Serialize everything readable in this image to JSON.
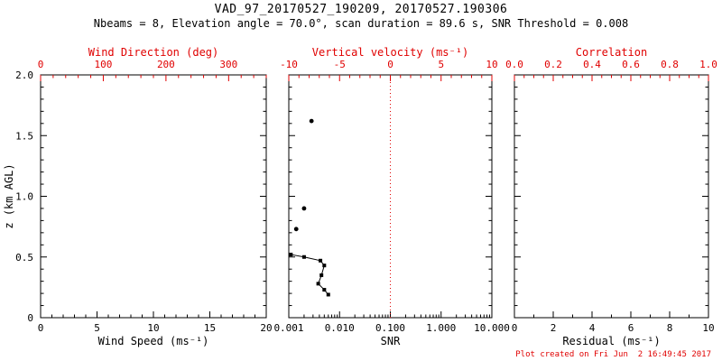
{
  "title": "VAD_97_20170527_190209, 20170527.190306",
  "subtitle": "Nbeams = 8, Elevation angle = 70.0°, scan duration = 89.6 s, SNR Threshold = 0.008",
  "footer": "Plot created on Fri Jun  2 16:49:45 2017",
  "colors": {
    "axis": "#000000",
    "secondary": "#e00000",
    "background": "#ffffff"
  },
  "y_axis": {
    "label": "z (km AGL)",
    "lim": [
      0,
      2
    ],
    "ticks": [
      "2.0",
      "1.5",
      "1.0",
      "0.5",
      "0"
    ],
    "tick_values": [
      2.0,
      1.5,
      1.0,
      0.5,
      0
    ],
    "minor_step": 0.1
  },
  "chart_data": [
    {
      "type": "scatter",
      "panel": "wind-speed",
      "xlabel": "Wind Speed (ms⁻¹)",
      "xlim": [
        0,
        20
      ],
      "xticks": [
        "0",
        "5",
        "10",
        "15",
        "20"
      ],
      "xminor": 1,
      "top_axis": {
        "label": "Wind Direction (deg)",
        "lim": [
          0,
          360
        ],
        "ticks": [
          "0",
          "100",
          "200",
          "300"
        ],
        "minor": 20
      },
      "points": []
    },
    {
      "type": "line",
      "panel": "snr",
      "xlabel": "SNR",
      "xscale": "log",
      "xlim": [
        0.001,
        10
      ],
      "xticks": [
        "0.001",
        "0.010",
        "0.100",
        "1.000",
        "10.000"
      ],
      "top_axis": {
        "label": "Vertical velocity (ms⁻¹)",
        "lim": [
          -10,
          10
        ],
        "ticks": [
          "-10",
          "-5",
          "0",
          "5",
          "10"
        ],
        "minor": 1
      },
      "ref_line": {
        "axis": "top",
        "value": 0,
        "style": "dotted"
      },
      "line_points": [
        {
          "snr": 0.0011,
          "z": 0.52
        },
        {
          "snr": 0.002,
          "z": 0.5
        },
        {
          "snr": 0.0042,
          "z": 0.47
        },
        {
          "snr": 0.005,
          "z": 0.43
        },
        {
          "snr": 0.0044,
          "z": 0.35
        },
        {
          "snr": 0.0038,
          "z": 0.28
        },
        {
          "snr": 0.005,
          "z": 0.23
        },
        {
          "snr": 0.006,
          "z": 0.19
        }
      ],
      "scatter_points": [
        {
          "snr": 0.0028,
          "z": 1.62
        },
        {
          "snr": 0.002,
          "z": 0.9
        },
        {
          "snr": 0.0014,
          "z": 0.73
        }
      ]
    },
    {
      "type": "scatter",
      "panel": "residual",
      "xlabel": "Residual (ms⁻¹)",
      "xlim": [
        0,
        10
      ],
      "xticks": [
        "0",
        "2",
        "4",
        "6",
        "8",
        "10"
      ],
      "xminor": 1,
      "top_axis": {
        "label": "Correlation",
        "lim": [
          0,
          1
        ],
        "ticks": [
          "0.0",
          "0.2",
          "0.4",
          "0.6",
          "0.8",
          "1.0"
        ],
        "minor": 0.05
      },
      "points": []
    }
  ]
}
